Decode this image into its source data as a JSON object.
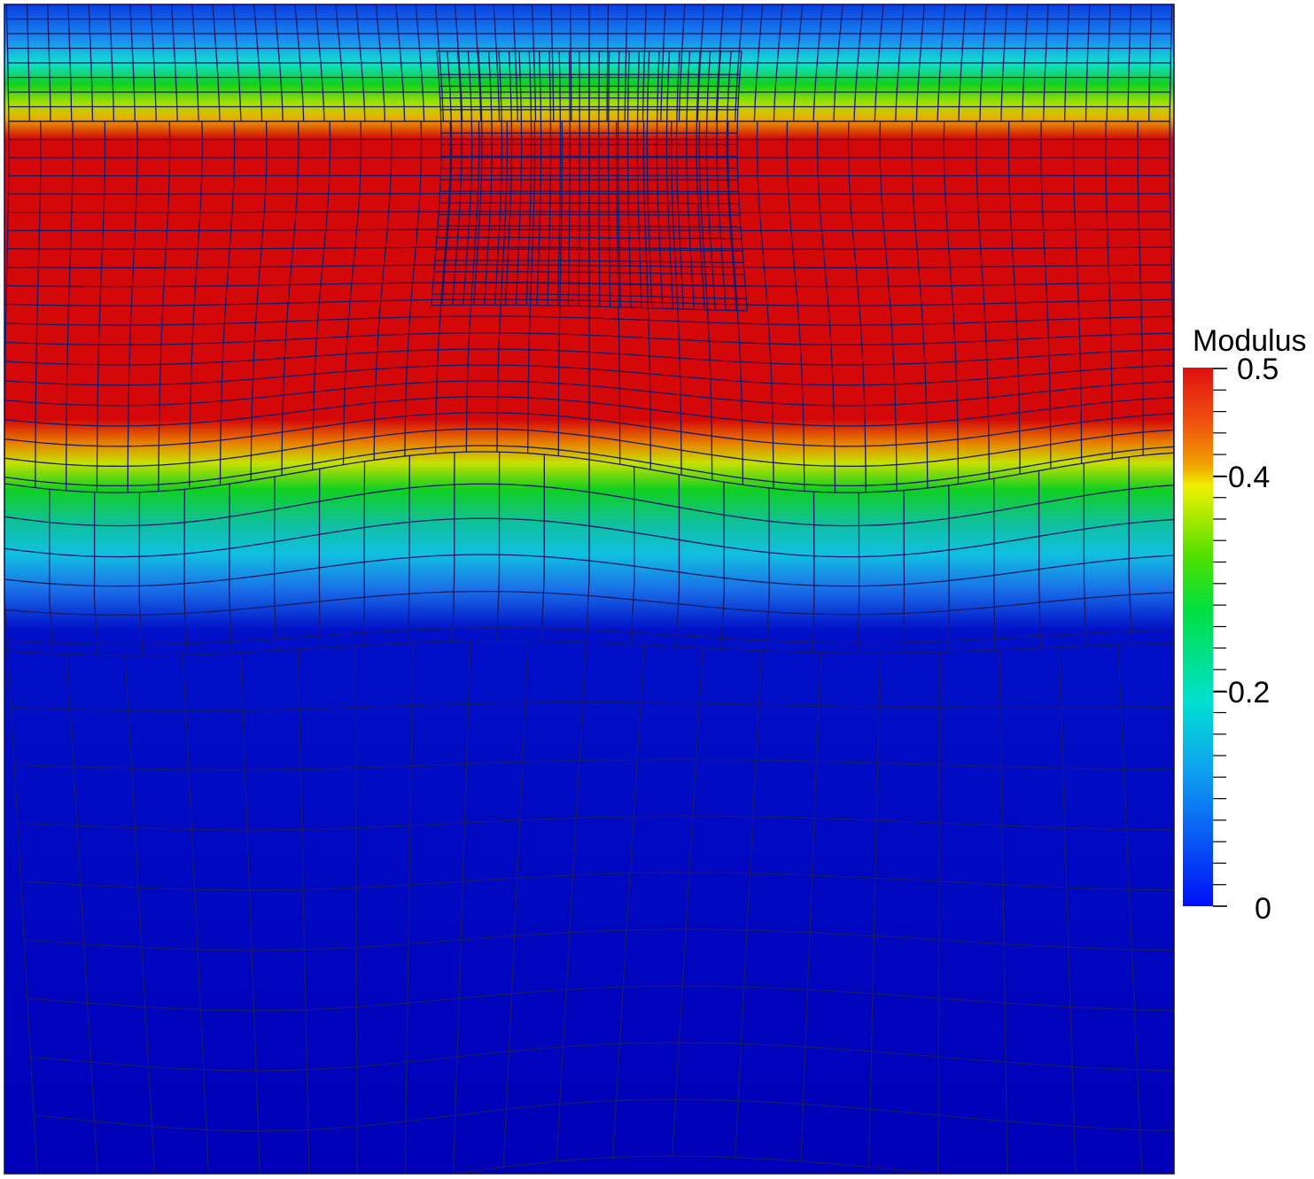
{
  "scalar_bar": {
    "title": "Modulus",
    "ticks": [
      "0.5",
      "0.4",
      "0.2",
      "0"
    ],
    "tick_values": [
      0.5,
      0.4,
      0.2,
      0
    ],
    "range": [
      0,
      0.5
    ],
    "minor_tick_count": 25
  },
  "field": {
    "description_color_map": "rainbow (blue to red)",
    "bands": [
      {
        "y_from": 0.0,
        "y_to": 0.03,
        "value": 0.04
      },
      {
        "y_from": 0.03,
        "y_to": 0.055,
        "value": 0.1
      },
      {
        "y_from": 0.055,
        "y_to": 0.07,
        "value": 0.2
      },
      {
        "y_from": 0.07,
        "y_to": 0.09,
        "value": 0.32
      },
      {
        "y_from": 0.09,
        "y_to": 0.1,
        "value": 0.4
      },
      {
        "y_from": 0.1,
        "y_to": 0.12,
        "value": 0.47
      },
      {
        "y_from": 0.12,
        "y_to": 0.36,
        "value": 0.5
      },
      {
        "y_from": 0.36,
        "y_to": 0.4,
        "value": 0.42
      },
      {
        "y_from": 0.4,
        "y_to": 0.44,
        "value": 0.3
      },
      {
        "y_from": 0.44,
        "y_to": 0.48,
        "value": 0.18
      },
      {
        "y_from": 0.48,
        "y_to": 0.53,
        "value": 0.08
      },
      {
        "y_from": 0.53,
        "y_to": 1.0,
        "value": 0.0
      }
    ]
  },
  "colors": {
    "mesh_line": "#1a1a66",
    "background": "#ffffff",
    "low": "#0000c0",
    "high": "#d00000"
  }
}
